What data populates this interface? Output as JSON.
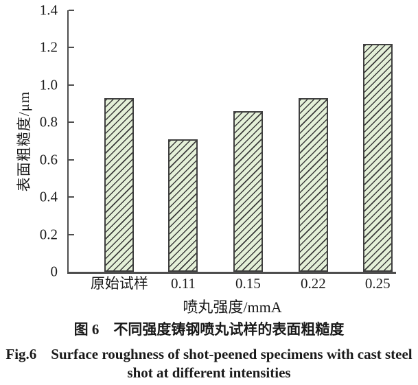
{
  "chart_data": {
    "type": "bar",
    "title": "",
    "categories": [
      "原始试样",
      "0.11",
      "0.15",
      "0.22",
      "0.25"
    ],
    "values": [
      0.93,
      0.71,
      0.86,
      0.93,
      1.22
    ],
    "xlabel": "喷丸强度/mmA",
    "ylabel": "表面粗糙度/μm",
    "ylim": [
      0,
      1.4
    ],
    "ytick_step": 0.2,
    "ytick_labels": [
      "0",
      "0.2",
      "0.4",
      "0.6",
      "0.8",
      "1.0",
      "1.2",
      "1.4"
    ],
    "grid": false,
    "legend": null,
    "bar_hatch": "diagonal-forward",
    "colors": {
      "bar_fill": "#e4f0d8",
      "bar_border": "#404040",
      "hatch_line": "#3a3a3a",
      "axis": "#4d4d4d",
      "text": "#1a1a1a"
    }
  },
  "caption": {
    "zh": "图 6　不同强度铸钢喷丸试样的表面粗糙度",
    "en_line1": "Fig.6　Surface roughness of shot-peened specimens with cast steel",
    "en_line2": "shot at different intensities"
  }
}
